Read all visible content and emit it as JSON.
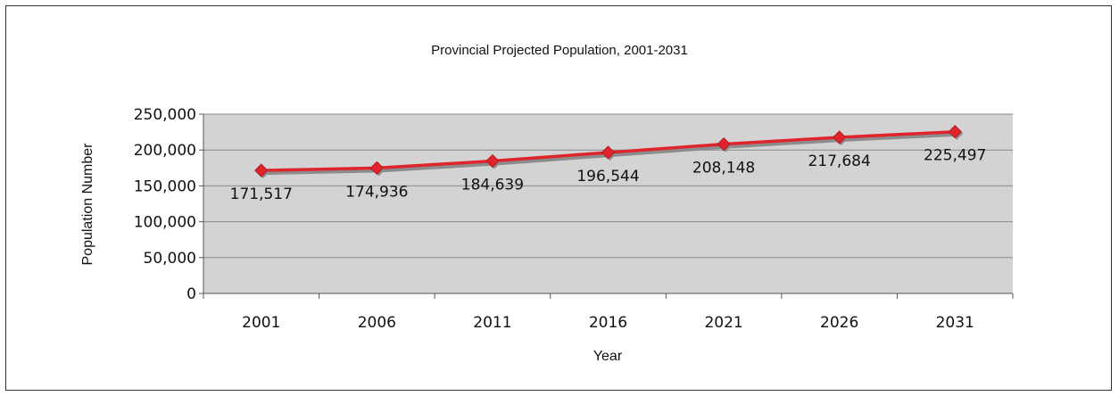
{
  "chart_data": {
    "type": "line",
    "title": "Provincial Projected Population, 2001-2031",
    "xlabel": "Year",
    "ylabel": "Population Number",
    "categories": [
      "2001",
      "2006",
      "2011",
      "2016",
      "2021",
      "2026",
      "2031"
    ],
    "series": [
      {
        "values": [
          171517,
          174936,
          184639,
          196544,
          208148,
          217684,
          225497
        ],
        "color": "#e0242b"
      }
    ],
    "data_labels": [
      "171,517",
      "174,936",
      "184,639",
      "196,544",
      "208,148",
      "217,684",
      "225,497"
    ],
    "yticks": [
      0,
      50000,
      100000,
      150000,
      200000,
      250000
    ],
    "ytick_labels": [
      "0",
      "50,000",
      "100,000",
      "150,000",
      "200,000",
      "250,000"
    ],
    "ylim": [
      0,
      250000
    ],
    "grid": true,
    "legend": "none",
    "plot_background": "#d3d3d3"
  }
}
